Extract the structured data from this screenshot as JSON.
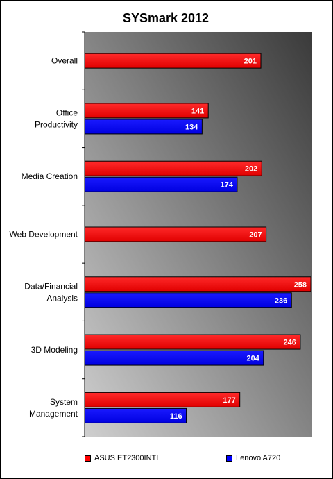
{
  "chart_data": {
    "type": "bar",
    "orientation": "horizontal",
    "title": "SYSmark 2012",
    "categories": [
      "Overall",
      "Office Productivity",
      "Media Creation",
      "Web Development",
      "Data/Financial Analysis",
      "3D Modeling",
      "System Management"
    ],
    "category_lines": [
      [
        "Overall"
      ],
      [
        "Office",
        "Productivity"
      ],
      [
        "Media Creation"
      ],
      [
        "Web Development"
      ],
      [
        "Data/Financial",
        "Analysis"
      ],
      [
        "3D Modeling"
      ],
      [
        "System",
        "Management"
      ]
    ],
    "series": [
      {
        "name": "ASUS ET2300INTI",
        "color": "#ff0000",
        "values": [
          201,
          141,
          202,
          207,
          258,
          246,
          177
        ]
      },
      {
        "name": "Lenovo A720",
        "color": "#0000ff",
        "values": [
          null,
          134,
          174,
          null,
          236,
          204,
          116
        ]
      }
    ],
    "xlim": [
      0,
      300
    ],
    "grid": false,
    "legend_position": "bottom",
    "plot_background": "gradient-dark-gray"
  }
}
